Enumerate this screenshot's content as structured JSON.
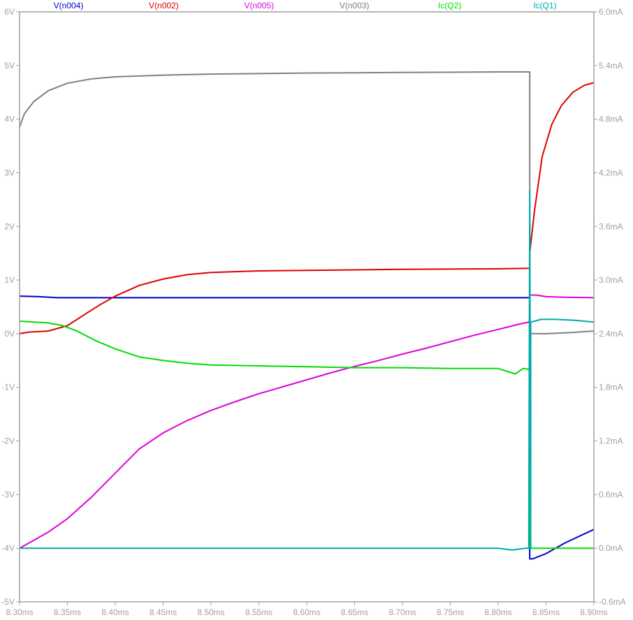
{
  "chart_data": {
    "type": "line",
    "x_ticks": [
      "8.30ms",
      "8.35ms",
      "8.40ms",
      "8.45ms",
      "8.50ms",
      "8.55ms",
      "8.60ms",
      "8.65ms",
      "8.70ms",
      "8.75ms",
      "8.80ms",
      "8.85ms",
      "8.90ms"
    ],
    "y_left_ticks": [
      "6V",
      "5V",
      "4V",
      "3V",
      "2V",
      "1V",
      "0V",
      "-1V",
      "-2V",
      "-3V",
      "-4V",
      "-5V"
    ],
    "y_right_ticks": [
      "6.0mA",
      "5.4mA",
      "4.8mA",
      "4.2mA",
      "3.6mA",
      "3.0mA",
      "2.4mA",
      "1.8mA",
      "1.2mA",
      "0.6mA",
      "0.0mA",
      "-0.6mA"
    ],
    "xlim": [
      8.3,
      8.9
    ],
    "ylim_left": [
      -5,
      6
    ],
    "ylim_right": [
      -0.6,
      6.0
    ],
    "x_unit": "ms",
    "grid": false,
    "legend_placement": "top",
    "series": [
      {
        "name": "V(n004)",
        "color": "#0000cc",
        "axis": "left",
        "points": [
          [
            8.3,
            0.7
          ],
          [
            8.32,
            0.69
          ],
          [
            8.34,
            0.67
          ],
          [
            8.5,
            0.67
          ],
          [
            8.7,
            0.67
          ],
          [
            8.833,
            0.67
          ],
          [
            8.833,
            -4.2
          ],
          [
            8.836,
            -4.2
          ],
          [
            8.85,
            -4.1
          ],
          [
            8.87,
            -3.9
          ],
          [
            8.9,
            -3.65
          ]
        ]
      },
      {
        "name": "V(n002)",
        "color": "#dd0000",
        "axis": "left",
        "points": [
          [
            8.3,
            0.0
          ],
          [
            8.31,
            0.03
          ],
          [
            8.33,
            0.05
          ],
          [
            8.35,
            0.15
          ],
          [
            8.37,
            0.38
          ],
          [
            8.385,
            0.55
          ],
          [
            8.4,
            0.7
          ],
          [
            8.425,
            0.9
          ],
          [
            8.45,
            1.02
          ],
          [
            8.475,
            1.1
          ],
          [
            8.5,
            1.14
          ],
          [
            8.55,
            1.17
          ],
          [
            8.6,
            1.18
          ],
          [
            8.7,
            1.2
          ],
          [
            8.8,
            1.21
          ],
          [
            8.833,
            1.22
          ],
          [
            8.833,
            1.5
          ],
          [
            8.838,
            2.3
          ],
          [
            8.846,
            3.3
          ],
          [
            8.856,
            3.9
          ],
          [
            8.866,
            4.25
          ],
          [
            8.878,
            4.5
          ],
          [
            8.89,
            4.63
          ],
          [
            8.9,
            4.68
          ]
        ]
      },
      {
        "name": "V(n005)",
        "color": "#dd00dd",
        "axis": "left",
        "points": [
          [
            8.3,
            -4.0
          ],
          [
            8.315,
            -3.85
          ],
          [
            8.33,
            -3.7
          ],
          [
            8.35,
            -3.45
          ],
          [
            8.375,
            -3.05
          ],
          [
            8.4,
            -2.6
          ],
          [
            8.425,
            -2.15
          ],
          [
            8.45,
            -1.85
          ],
          [
            8.475,
            -1.62
          ],
          [
            8.5,
            -1.43
          ],
          [
            8.525,
            -1.27
          ],
          [
            8.55,
            -1.12
          ],
          [
            8.575,
            -0.99
          ],
          [
            8.6,
            -0.86
          ],
          [
            8.625,
            -0.73
          ],
          [
            8.65,
            -0.61
          ],
          [
            8.675,
            -0.5
          ],
          [
            8.7,
            -0.38
          ],
          [
            8.725,
            -0.27
          ],
          [
            8.75,
            -0.15
          ],
          [
            8.775,
            -0.03
          ],
          [
            8.8,
            0.08
          ],
          [
            8.82,
            0.17
          ],
          [
            8.833,
            0.22
          ],
          [
            8.833,
            0.72
          ],
          [
            8.84,
            0.72
          ],
          [
            8.85,
            0.69
          ],
          [
            8.87,
            0.68
          ],
          [
            8.9,
            0.67
          ]
        ]
      },
      {
        "name": "V(n003)",
        "color": "#808080",
        "axis": "left",
        "points": [
          [
            8.3,
            3.85
          ],
          [
            8.305,
            4.1
          ],
          [
            8.315,
            4.33
          ],
          [
            8.33,
            4.53
          ],
          [
            8.35,
            4.67
          ],
          [
            8.375,
            4.75
          ],
          [
            8.4,
            4.79
          ],
          [
            8.45,
            4.82
          ],
          [
            8.5,
            4.84
          ],
          [
            8.6,
            4.86
          ],
          [
            8.7,
            4.87
          ],
          [
            8.8,
            4.88
          ],
          [
            8.833,
            4.88
          ],
          [
            8.833,
            0.0
          ],
          [
            8.85,
            0.0
          ],
          [
            8.875,
            0.02
          ],
          [
            8.9,
            0.05
          ]
        ]
      },
      {
        "name": "Ic(Q2)",
        "color": "#00dd00",
        "axis": "right",
        "points": [
          [
            8.3,
            2.54
          ],
          [
            8.315,
            2.53
          ],
          [
            8.33,
            2.52
          ],
          [
            8.345,
            2.49
          ],
          [
            8.36,
            2.43
          ],
          [
            8.38,
            2.32
          ],
          [
            8.4,
            2.23
          ],
          [
            8.425,
            2.14
          ],
          [
            8.45,
            2.1
          ],
          [
            8.475,
            2.07
          ],
          [
            8.5,
            2.05
          ],
          [
            8.55,
            2.04
          ],
          [
            8.6,
            2.03
          ],
          [
            8.65,
            2.02
          ],
          [
            8.7,
            2.02
          ],
          [
            8.75,
            2.01
          ],
          [
            8.8,
            2.01
          ],
          [
            8.812,
            1.97
          ],
          [
            8.818,
            1.95
          ],
          [
            8.826,
            2.01
          ],
          [
            8.833,
            2.0
          ],
          [
            8.833,
            0.0
          ],
          [
            8.9,
            0.0
          ]
        ]
      },
      {
        "name": "Ic(Q1)",
        "color": "#00aaaa",
        "axis": "right",
        "points": [
          [
            8.3,
            0.0
          ],
          [
            8.5,
            0.0
          ],
          [
            8.7,
            0.0
          ],
          [
            8.8,
            0.0
          ],
          [
            8.815,
            -0.02
          ],
          [
            8.828,
            0.0
          ],
          [
            8.832,
            0.0
          ],
          [
            8.833,
            4.0
          ],
          [
            8.834,
            0.0
          ],
          [
            8.834,
            2.53
          ],
          [
            8.845,
            2.56
          ],
          [
            8.86,
            2.56
          ],
          [
            8.88,
            2.55
          ],
          [
            8.9,
            2.53
          ]
        ]
      }
    ]
  }
}
